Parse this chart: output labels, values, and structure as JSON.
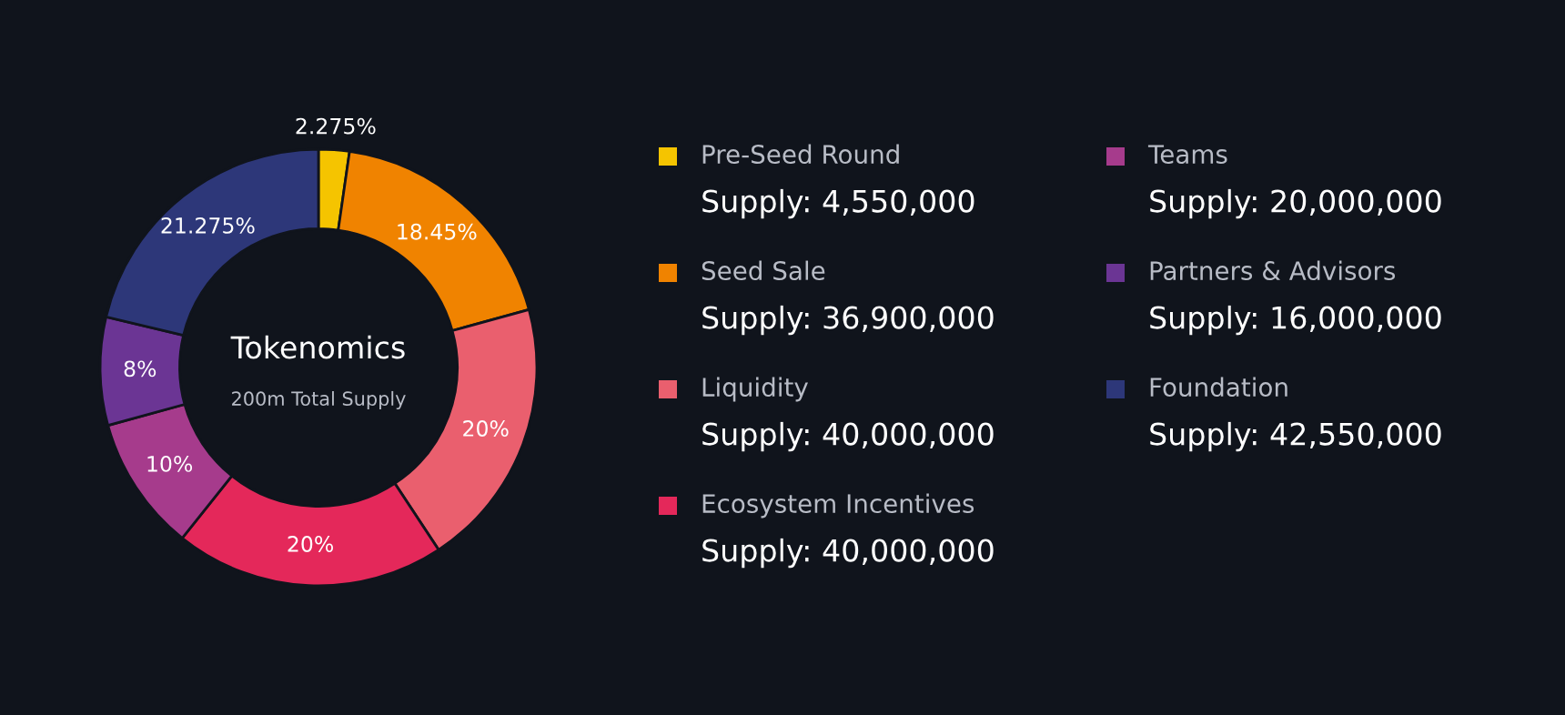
{
  "chart_data": {
    "type": "donut",
    "title": "Tokenomics",
    "subtitle": "200m Total Supply",
    "categories": [
      "Pre-Seed Round",
      "Seed Sale",
      "Liquidity",
      "Ecosystem Incentives",
      "Teams",
      "Partners & Advisors",
      "Foundation"
    ],
    "values": [
      2.275,
      18.45,
      20,
      20,
      10,
      8,
      21.275
    ],
    "colors": [
      "#f5c400",
      "#f08300",
      "#ea5f6e",
      "#e4285a",
      "#a63b8c",
      "#6b3594",
      "#2d3779"
    ],
    "value_labels": [
      "2.275%",
      "18.45%",
      "20%",
      "20%",
      "10%",
      "8%",
      "21.275%"
    ],
    "legend": "right",
    "annotations": [
      "Supply: 4,550,000",
      "Supply: 36,900,000",
      "Supply: 40,000,000",
      "Supply: 40,000,000",
      "Supply: 20,000,000",
      "Supply: 16,000,000",
      "Supply: 42,550,000"
    ]
  }
}
